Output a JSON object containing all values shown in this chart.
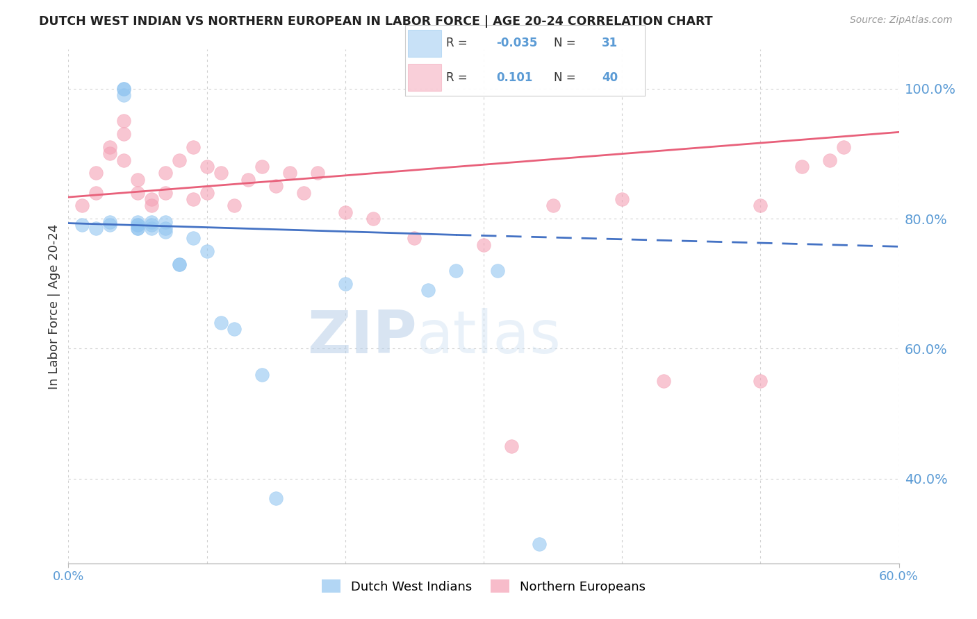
{
  "title": "DUTCH WEST INDIAN VS NORTHERN EUROPEAN IN LABOR FORCE | AGE 20-24 CORRELATION CHART",
  "source": "Source: ZipAtlas.com",
  "ylabel_left": "In Labor Force | Age 20-24",
  "xlim": [
    0.0,
    0.6
  ],
  "ylim": [
    0.27,
    1.06
  ],
  "x_ticks": [
    0.0,
    0.1,
    0.2,
    0.3,
    0.4,
    0.5,
    0.6
  ],
  "y_ticks_right": [
    0.4,
    0.6,
    0.8,
    1.0
  ],
  "y_tick_labels_right": [
    "40.0%",
    "60.0%",
    "80.0%",
    "100.0%"
  ],
  "blue_scatter_x": [
    0.01,
    0.02,
    0.03,
    0.03,
    0.04,
    0.04,
    0.04,
    0.05,
    0.05,
    0.05,
    0.05,
    0.05,
    0.06,
    0.06,
    0.06,
    0.07,
    0.07,
    0.07,
    0.08,
    0.08,
    0.09,
    0.1,
    0.11,
    0.12,
    0.14,
    0.15,
    0.2,
    0.26,
    0.28,
    0.31,
    0.34
  ],
  "blue_scatter_y": [
    0.79,
    0.785,
    0.79,
    0.795,
    1.0,
    1.0,
    0.99,
    0.79,
    0.785,
    0.79,
    0.795,
    0.785,
    0.79,
    0.785,
    0.795,
    0.78,
    0.785,
    0.795,
    0.73,
    0.73,
    0.77,
    0.75,
    0.64,
    0.63,
    0.56,
    0.37,
    0.7,
    0.69,
    0.72,
    0.72,
    0.3
  ],
  "pink_scatter_x": [
    0.01,
    0.02,
    0.02,
    0.03,
    0.03,
    0.04,
    0.04,
    0.04,
    0.05,
    0.05,
    0.06,
    0.06,
    0.07,
    0.07,
    0.08,
    0.09,
    0.09,
    0.1,
    0.1,
    0.11,
    0.12,
    0.13,
    0.14,
    0.15,
    0.16,
    0.17,
    0.18,
    0.2,
    0.22,
    0.25,
    0.3,
    0.32,
    0.35,
    0.4,
    0.43,
    0.5,
    0.5,
    0.53,
    0.55,
    0.56
  ],
  "pink_scatter_y": [
    0.82,
    0.84,
    0.87,
    0.91,
    0.9,
    0.95,
    0.93,
    0.89,
    0.84,
    0.86,
    0.83,
    0.82,
    0.87,
    0.84,
    0.89,
    0.91,
    0.83,
    0.88,
    0.84,
    0.87,
    0.82,
    0.86,
    0.88,
    0.85,
    0.87,
    0.84,
    0.87,
    0.81,
    0.8,
    0.77,
    0.76,
    0.45,
    0.82,
    0.83,
    0.55,
    0.82,
    0.55,
    0.88,
    0.89,
    0.91
  ],
  "blue_trend_x0": 0.0,
  "blue_trend_y0": 0.793,
  "blue_trend_solid_x1": 0.28,
  "blue_trend_solid_y1": 0.775,
  "blue_trend_dash_x1": 0.6,
  "blue_trend_dash_y1": 0.757,
  "pink_trend_x0": 0.0,
  "pink_trend_y0": 0.833,
  "pink_trend_x1": 0.6,
  "pink_trend_y1": 0.933,
  "watermark_zip": "ZIP",
  "watermark_atlas": "atlas",
  "background_color": "#ffffff",
  "scatter_blue_color": "#92c5f0",
  "scatter_pink_color": "#f4a0b4",
  "trend_blue_color": "#4472c4",
  "trend_pink_color": "#e8607a",
  "grid_color": "#d0d0d0",
  "title_color": "#222222",
  "right_axis_color": "#5b9bd5",
  "legend_R_blue": "-0.035",
  "legend_N_blue": "31",
  "legend_R_pink": "0.101",
  "legend_N_pink": "40",
  "bottom_legend_labels": [
    "Dutch West Indians",
    "Northern Europeans"
  ]
}
